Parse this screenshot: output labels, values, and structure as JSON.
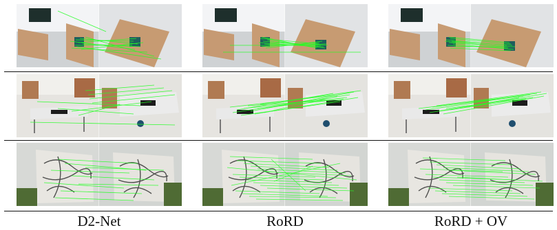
{
  "figure": {
    "columns": [
      {
        "label": "D2-Net",
        "id": "d2net"
      },
      {
        "label": "RoRD",
        "id": "rord"
      },
      {
        "label": "RoRD + OV",
        "id": "rord-ov"
      }
    ],
    "rows": [
      {
        "scene": "office-boards"
      },
      {
        "scene": "lab-tables"
      },
      {
        "scene": "graffiti-wall"
      }
    ],
    "match_line_color": "#22ff22"
  }
}
